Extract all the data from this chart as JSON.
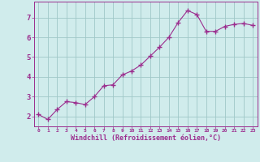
{
  "x": [
    0,
    1,
    2,
    3,
    4,
    5,
    6,
    7,
    8,
    9,
    10,
    11,
    12,
    13,
    14,
    15,
    16,
    17,
    18,
    19,
    20,
    21,
    22,
    23
  ],
  "y": [
    2.1,
    1.85,
    2.35,
    2.75,
    2.7,
    2.6,
    3.0,
    3.55,
    3.6,
    4.1,
    4.3,
    4.6,
    5.05,
    5.5,
    6.0,
    6.75,
    7.35,
    7.15,
    6.3,
    6.3,
    6.55,
    6.65,
    6.7,
    6.6
  ],
  "line_color": "#9b2d8e",
  "marker": "+",
  "marker_size": 4,
  "bg_color": "#d0ecec",
  "grid_color": "#a0c8c8",
  "xlabel": "Windchill (Refroidissement éolien,°C)",
  "xlabel_color": "#9b2d8e",
  "ylabel_ticks": [
    2,
    3,
    4,
    5,
    6,
    7
  ],
  "xlim": [
    -0.5,
    23.5
  ],
  "ylim": [
    1.5,
    7.8
  ],
  "xticks": [
    0,
    1,
    2,
    3,
    4,
    5,
    6,
    7,
    8,
    9,
    10,
    11,
    12,
    13,
    14,
    15,
    16,
    17,
    18,
    19,
    20,
    21,
    22,
    23
  ],
  "tick_color": "#9b2d8e",
  "spine_color": "#9b2d8e"
}
